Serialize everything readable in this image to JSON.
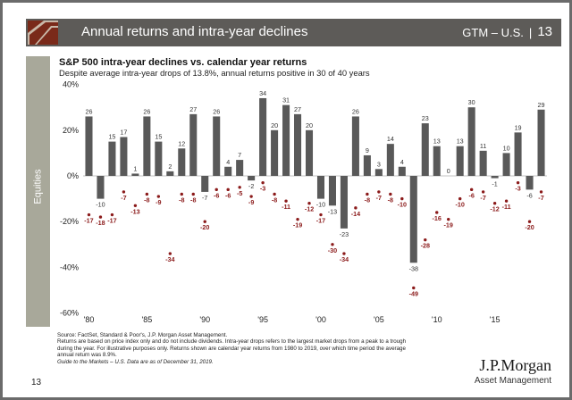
{
  "header": {
    "title": "Annual returns and intra-year declines",
    "region": "GTM – U.S.",
    "page": "13"
  },
  "sidebar": {
    "label": "Equities"
  },
  "chart_title": "S&P 500 intra-year declines vs. calendar year returns",
  "chart_subtitle": "Despite average intra-year drops of 13.8%, annual returns positive in 30 of 40 years",
  "colors": {
    "bar": "#595959",
    "dot": "#8b1a1a",
    "dot_label": "#8b1a1a",
    "header_bg": "#5d5b58",
    "logo_bg": "#7a2a1a",
    "sidebar_bg": "#a8a89a"
  },
  "chart_data": {
    "type": "bar",
    "x": [
      1980,
      1981,
      1982,
      1983,
      1984,
      1985,
      1986,
      1987,
      1988,
      1989,
      1990,
      1991,
      1992,
      1993,
      1994,
      1995,
      1996,
      1997,
      1998,
      1999,
      2000,
      2001,
      2002,
      2003,
      2004,
      2005,
      2006,
      2007,
      2008,
      2009,
      2010,
      2011,
      2012,
      2013,
      2014,
      2015,
      2016,
      2017,
      2018,
      2019
    ],
    "x_tick_labels": [
      "'80",
      "'85",
      "'90",
      "'95",
      "'00",
      "'05",
      "'10",
      "'15"
    ],
    "x_tick_years": [
      1980,
      1985,
      1990,
      1995,
      2000,
      2005,
      2010,
      2015
    ],
    "series": [
      {
        "name": "Annual return",
        "values": [
          26,
          -10,
          15,
          17,
          1,
          26,
          15,
          2,
          12,
          27,
          -7,
          26,
          4,
          7,
          -2,
          34,
          20,
          31,
          27,
          20,
          -10,
          -13,
          -23,
          26,
          9,
          3,
          14,
          4,
          -38,
          23,
          13,
          0,
          13,
          30,
          11,
          -1,
          10,
          19,
          -6,
          29
        ]
      },
      {
        "name": "Intra-year decline",
        "values": [
          -17,
          -18,
          -17,
          -7,
          -13,
          -8,
          -9,
          -34,
          -8,
          -8,
          -20,
          -6,
          -6,
          -5,
          -9,
          -3,
          -8,
          -11,
          -19,
          -12,
          -17,
          -30,
          -34,
          -14,
          -8,
          -7,
          -8,
          -10,
          -49,
          -28,
          -16,
          -19,
          -10,
          -6,
          -7,
          -12,
          -11,
          -3,
          -20,
          -7
        ]
      }
    ],
    "ylim": [
      -60,
      40
    ],
    "y_ticks": [
      40,
      20,
      0,
      -20,
      -40,
      -60
    ],
    "y_tick_labels": [
      "40%",
      "20%",
      "0%",
      "-20%",
      "-40%",
      "-60%"
    ],
    "legend": "none",
    "grid": false
  },
  "footnotes": {
    "source": "Source: FactSet, Standard & Poor's, J.P. Morgan Asset Management.",
    "line1": "Returns are based on price index only and do not include dividends. Intra-year drops refers to the largest market drops from a peak to a trough",
    "line2": "during the year. For illustrative purposes only. Returns shown are calendar year returns from 1980 to 2019, over which time period the average",
    "line3": "annual return was 8.9%.",
    "guide": "Guide to the Markets – U.S. Data are as of December 31, 2019."
  },
  "brand": {
    "name": "J.P.Morgan",
    "sub": "Asset Management"
  },
  "page_number": "13"
}
